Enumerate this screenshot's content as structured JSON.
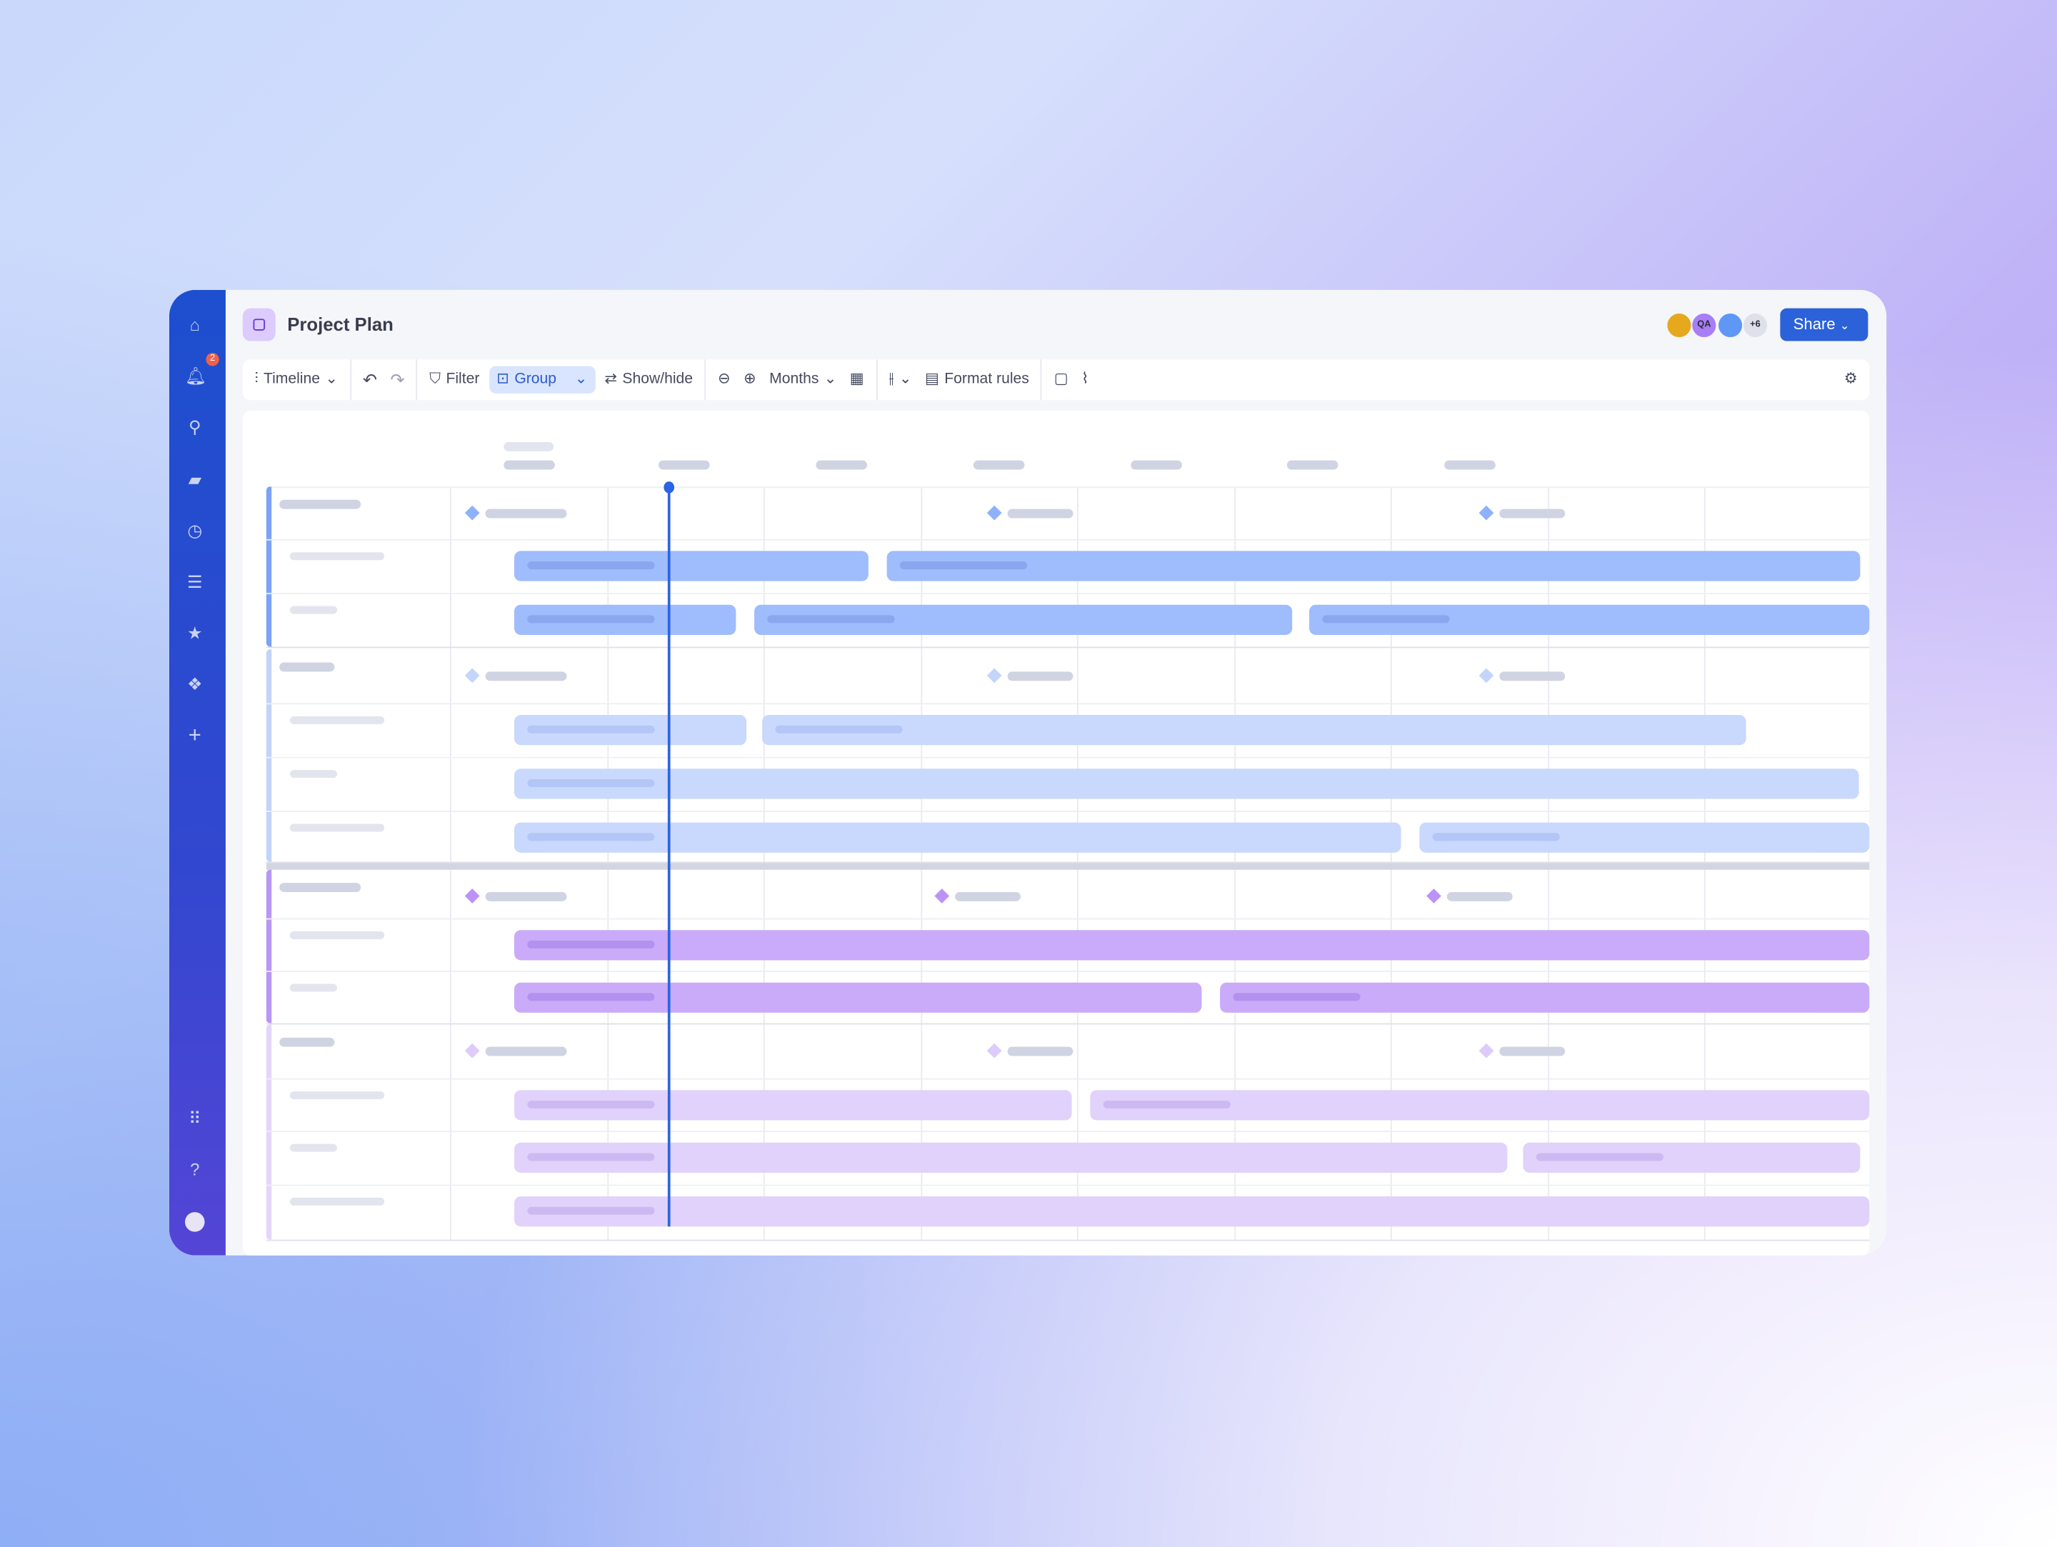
{
  "app": {
    "title": "Project Plan"
  },
  "sidebar": {
    "items": [
      {
        "icon": "home-icon"
      },
      {
        "icon": "bell-icon",
        "badge": "2"
      },
      {
        "icon": "search-icon"
      },
      {
        "icon": "folder-icon"
      },
      {
        "icon": "clock-icon"
      },
      {
        "icon": "contacts-icon"
      },
      {
        "icon": "star-icon"
      },
      {
        "icon": "apps-diamond-icon"
      },
      {
        "icon": "plus-icon"
      }
    ],
    "bottom": [
      {
        "icon": "grid-icon"
      },
      {
        "icon": "help-icon"
      },
      {
        "icon": "profile-avatar"
      }
    ]
  },
  "header": {
    "avatars": [
      {
        "type": "photo",
        "color": "#e6a81c"
      },
      {
        "initials": "QA",
        "color": "#a77ef5"
      },
      {
        "type": "photo",
        "color": "#5f97f6"
      },
      {
        "initials": "+6",
        "color": "#dfe1ea"
      }
    ],
    "share_label": "Share"
  },
  "toolbar": {
    "view": "Timeline",
    "filter": "Filter",
    "group": "Group",
    "showhide": "Show/hide",
    "scale": "Months",
    "format_rules": "Format rules"
  },
  "colors": {
    "accent": "#2c62d9",
    "today_line": "#2a63e6",
    "group1": "#9fbcfc",
    "group2": "#c9d8fd",
    "group3": "#c9abfa",
    "group4": "#e1d2fb"
  }
}
